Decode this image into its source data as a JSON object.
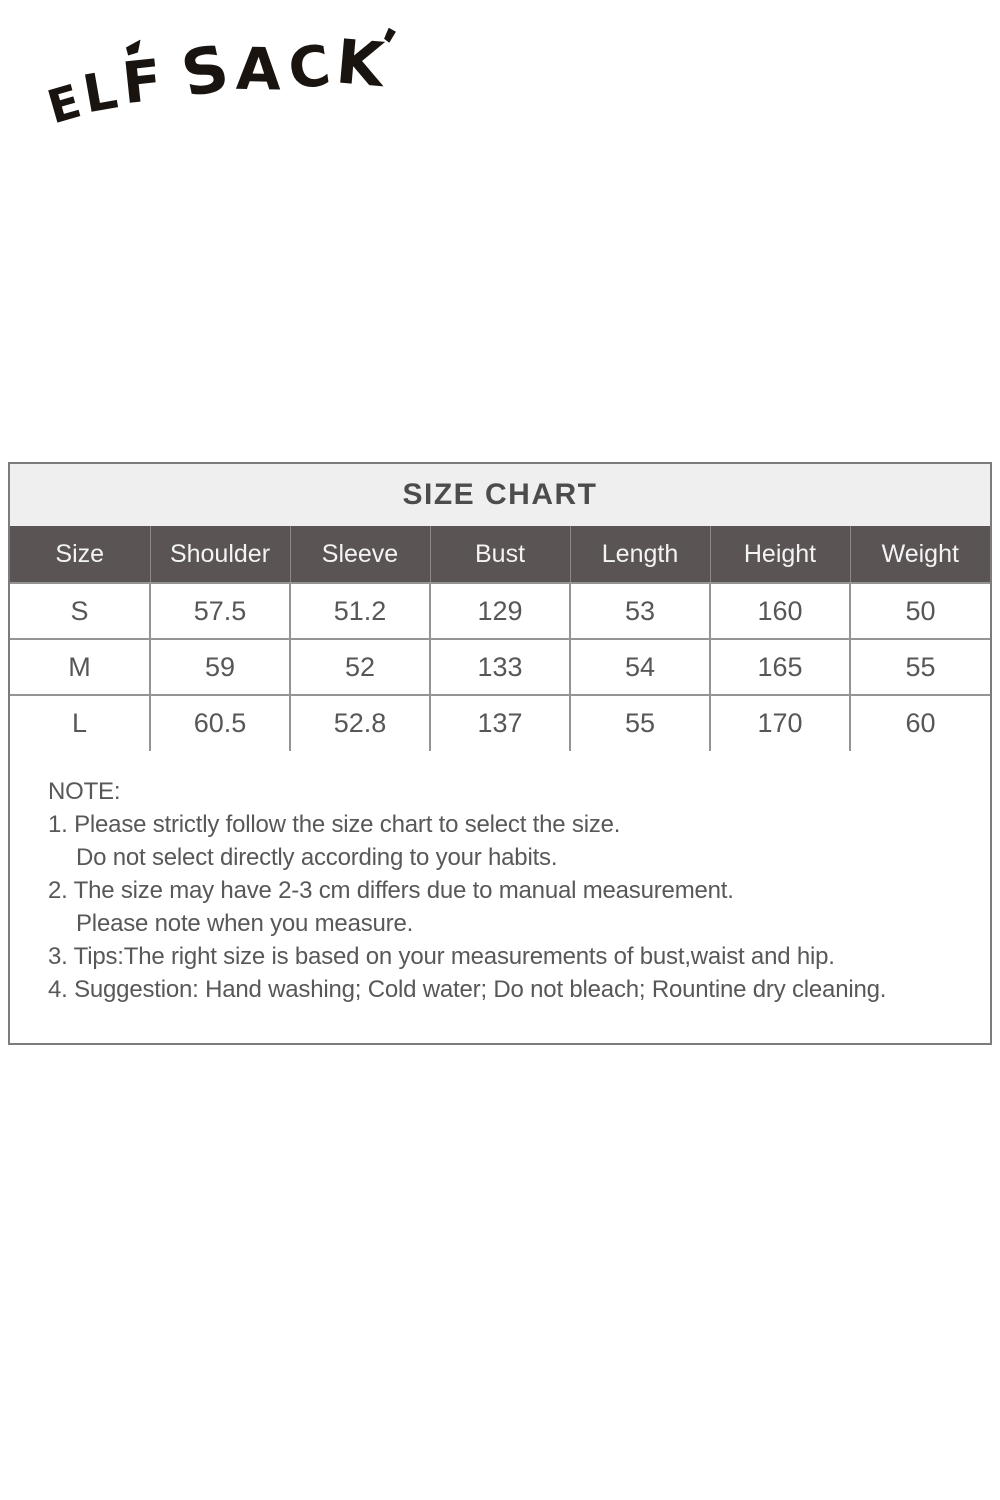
{
  "brand": {
    "name": "ELF SACK",
    "letters": [
      "E",
      "L",
      "F",
      "S",
      "A",
      "C",
      "K"
    ]
  },
  "size_chart": {
    "title": "SIZE CHART",
    "columns": [
      "Size",
      "Shoulder",
      "Sleeve",
      "Bust",
      "Length",
      "Height",
      "Weight"
    ],
    "rows": [
      [
        "S",
        "57.5",
        "51.2",
        "129",
        "53",
        "160",
        "50"
      ],
      [
        "M",
        "59",
        "52",
        "133",
        "54",
        "165",
        "55"
      ],
      [
        "L",
        "60.5",
        "52.8",
        "137",
        "55",
        "170",
        "60"
      ]
    ]
  },
  "note": {
    "heading": "NOTE:",
    "lines": [
      "1. Please strictly follow the size chart to select the size.",
      "Do not select directly according to your habits.",
      "2. The size may have 2-3 cm differs due to manual measurement.",
      "Please note when you measure.",
      "3. Tips:The right size is based on your measurements of bust,waist and hip.",
      "4. Suggestion: Hand washing; Cold water; Do not bleach; Rountine dry cleaning."
    ]
  },
  "colors": {
    "header_bg": "#5a5455",
    "header_text": "#f4f3f3",
    "title_bg": "#f0efef",
    "title_text": "#4c4c4c",
    "body_text": "#585858",
    "border": "#7c7c7c",
    "logo": "#1a1410"
  }
}
